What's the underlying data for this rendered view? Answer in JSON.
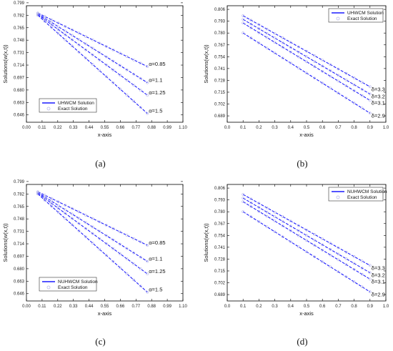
{
  "chart_data": [
    {
      "type": "line",
      "panel_label": "(a)",
      "xlabel": "x-axis",
      "ylabel": "Solutions(w(x,t))",
      "xlim": [
        0.0,
        1.1
      ],
      "ylim": [
        0.636,
        0.795
      ],
      "x_ticks": [
        "0.00",
        "0.11",
        "0.22",
        "0.33",
        "0.44",
        "0.55",
        "0.66",
        "0.77",
        "0.88",
        "0.99",
        "1.10"
      ],
      "y_ticks": [
        "0.646",
        "0.663",
        "0.680",
        "0.697",
        "0.714",
        "0.731",
        "0.748",
        "0.765",
        "0.782",
        "0.799"
      ],
      "legend": {
        "position": "bottom-left",
        "line_label": "UHWCM Solution",
        "marker_label": "Exact Solution"
      },
      "colors": {
        "line": "#1a1aff",
        "marker": "#b8b8e8"
      },
      "series": [
        {
          "label": "α=0.85",
          "x": [
            0.08,
            0.85
          ],
          "y": [
            0.785,
            0.712
          ]
        },
        {
          "label": "α=1.1",
          "x": [
            0.08,
            0.85
          ],
          "y": [
            0.784,
            0.69
          ]
        },
        {
          "label": "α=1.25",
          "x": [
            0.08,
            0.85
          ],
          "y": [
            0.783,
            0.673
          ]
        },
        {
          "label": "α=1.5",
          "x": [
            0.08,
            0.85
          ],
          "y": [
            0.782,
            0.648
          ]
        }
      ]
    },
    {
      "type": "line",
      "panel_label": "(b)",
      "xlabel": "x-axis",
      "ylabel": "Solutions(w(x,t))",
      "xlim": [
        0.0,
        1.0
      ],
      "ylim": [
        0.682,
        0.81
      ],
      "x_ticks": [
        "0.0",
        "0.1",
        "0.2",
        "0.3",
        "0.4",
        "0.5",
        "0.6",
        "0.7",
        "0.8",
        "0.9",
        "1.0"
      ],
      "y_ticks": [
        "0.689",
        "0.702",
        "0.715",
        "0.728",
        "0.741",
        "0.754",
        "0.767",
        "0.780",
        "0.793",
        "0.806"
      ],
      "legend": {
        "position": "top-right",
        "line_label": "UHWCM Solution",
        "marker_label": "Exact Solution"
      },
      "colors": {
        "line": "#1a1aff",
        "marker": "#b8b8e8"
      },
      "series": [
        {
          "label": "δ=3.3",
          "x": [
            0.1,
            0.9
          ],
          "y": [
            0.799,
            0.721
          ]
        },
        {
          "label": "δ=3.2",
          "x": [
            0.1,
            0.9
          ],
          "y": [
            0.795,
            0.713
          ]
        },
        {
          "label": "δ=3.1",
          "x": [
            0.1,
            0.9
          ],
          "y": [
            0.791,
            0.706
          ]
        },
        {
          "label": "δ=2.9",
          "x": [
            0.1,
            0.9
          ],
          "y": [
            0.78,
            0.692
          ]
        }
      ]
    },
    {
      "type": "line",
      "panel_label": "(c)",
      "xlabel": "x-axis",
      "ylabel": "Solutions(w(x,t))",
      "xlim": [
        0.0,
        1.1
      ],
      "ylim": [
        0.636,
        0.795
      ],
      "x_ticks": [
        "0.00",
        "0.11",
        "0.22",
        "0.33",
        "0.44",
        "0.55",
        "0.66",
        "0.77",
        "0.88",
        "0.99",
        "1.10"
      ],
      "y_ticks": [
        "0.646",
        "0.663",
        "0.680",
        "0.697",
        "0.714",
        "0.731",
        "0.748",
        "0.765",
        "0.782",
        "0.799"
      ],
      "legend": {
        "position": "bottom-left",
        "line_label": "NUHWCM Solution",
        "marker_label": "Exact Solution"
      },
      "colors": {
        "line": "#1a1aff",
        "marker": "#b8b8e8"
      },
      "series": [
        {
          "label": "α=0.85",
          "x": [
            0.08,
            0.85
          ],
          "y": [
            0.785,
            0.712
          ]
        },
        {
          "label": "α=1.1",
          "x": [
            0.08,
            0.85
          ],
          "y": [
            0.784,
            0.69
          ]
        },
        {
          "label": "α=1.25",
          "x": [
            0.08,
            0.85
          ],
          "y": [
            0.783,
            0.673
          ]
        },
        {
          "label": "α=1.5",
          "x": [
            0.08,
            0.85
          ],
          "y": [
            0.782,
            0.648
          ]
        }
      ]
    },
    {
      "type": "line",
      "panel_label": "(d)",
      "xlabel": "x-axis",
      "ylabel": "Solutions(w(x,t))",
      "xlim": [
        0.0,
        1.0
      ],
      "ylim": [
        0.682,
        0.81
      ],
      "x_ticks": [
        "0.0",
        "0.1",
        "0.2",
        "0.3",
        "0.4",
        "0.5",
        "0.6",
        "0.7",
        "0.8",
        "0.9",
        "1.0"
      ],
      "y_ticks": [
        "0.689",
        "0.702",
        "0.715",
        "0.728",
        "0.741",
        "0.754",
        "0.767",
        "0.780",
        "0.793",
        "0.806"
      ],
      "legend": {
        "position": "top-right",
        "line_label": "NUHWCM Solution",
        "marker_label": "Exact Solution"
      },
      "colors": {
        "line": "#1a1aff",
        "marker": "#b8b8e8"
      },
      "series": [
        {
          "label": "δ=3.3",
          "x": [
            0.1,
            0.9
          ],
          "y": [
            0.799,
            0.721
          ]
        },
        {
          "label": "δ=3.2",
          "x": [
            0.1,
            0.9
          ],
          "y": [
            0.795,
            0.713
          ]
        },
        {
          "label": "δ=3.1",
          "x": [
            0.1,
            0.9
          ],
          "y": [
            0.791,
            0.706
          ]
        },
        {
          "label": "δ=2.9",
          "x": [
            0.1,
            0.9
          ],
          "y": [
            0.78,
            0.692
          ]
        }
      ]
    }
  ]
}
